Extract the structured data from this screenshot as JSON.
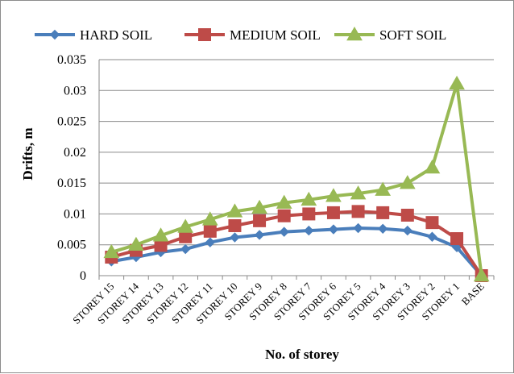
{
  "chart_data": {
    "type": "line",
    "title": "",
    "xlabel": "No. of storey",
    "ylabel": "Drifts, m",
    "ylim": [
      0,
      0.035
    ],
    "yticks": [
      "0",
      "0.005",
      "0.01",
      "0.015",
      "0.02",
      "0.025",
      "0.03",
      "0.035"
    ],
    "grid": "horizontal",
    "legend_position": "top",
    "categories": [
      "STOREY 15",
      "STOREY 14",
      "STOREY 13",
      "STOREY 12",
      "STOREY 11",
      "STOREY 10",
      "STOREY 9",
      "STOREY 8",
      "STOREY 7",
      "STOREY 6",
      "STOREY 5",
      "STOREY 4",
      "STOREY 3",
      "STOREY 2",
      "STOREY 1",
      "BASE"
    ],
    "series": [
      {
        "name": "HARD SOIL",
        "color": "#4a7ebb",
        "marker": "diamond",
        "values": [
          0.0023,
          0.003,
          0.0038,
          0.0043,
          0.0054,
          0.0062,
          0.0066,
          0.0071,
          0.0073,
          0.0075,
          0.0077,
          0.0076,
          0.0073,
          0.0063,
          0.0046,
          0.0
        ]
      },
      {
        "name": "MEDIUM SOIL",
        "color": "#be4b48",
        "marker": "square",
        "values": [
          0.003,
          0.0041,
          0.0049,
          0.0063,
          0.0072,
          0.0081,
          0.0089,
          0.0097,
          0.01,
          0.0102,
          0.0104,
          0.0102,
          0.0098,
          0.0086,
          0.006,
          0.0
        ]
      },
      {
        "name": "SOFT SOIL",
        "color": "#98b954",
        "marker": "triangle",
        "values": [
          0.0038,
          0.005,
          0.0065,
          0.0079,
          0.0091,
          0.0104,
          0.011,
          0.0118,
          0.0123,
          0.0129,
          0.0133,
          0.0139,
          0.015,
          0.0175,
          0.0311,
          0.0
        ]
      }
    ]
  }
}
